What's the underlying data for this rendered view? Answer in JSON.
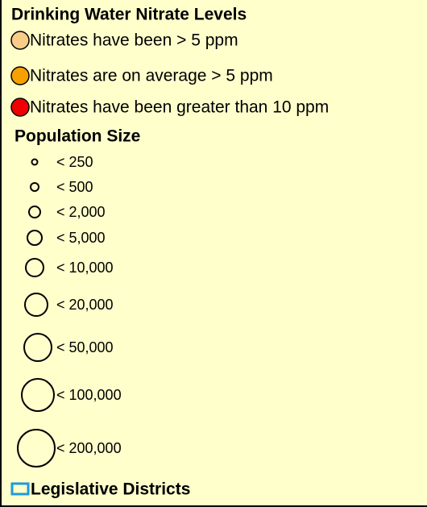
{
  "legend": {
    "title": "Drinking Water Nitrate Levels",
    "nitrate_items": [
      {
        "label": "Nitrates have been > 5 ppm",
        "color": "#f9cc8a"
      },
      {
        "label": "Nitrates are on average > 5 ppm",
        "color": "#f7a100"
      },
      {
        "label": "Nitrates have been greater than 10 ppm",
        "color": "#f00000"
      }
    ],
    "population_title": "Population Size",
    "population_items": [
      "< 250",
      "< 500",
      "< 2,000",
      "< 5,000",
      "< 10,000",
      "< 20,000",
      "< 50,000",
      "< 100,000",
      "< 200,000"
    ],
    "districts_label": "Legislative Districts",
    "districts_color": "#1f9ad6"
  }
}
